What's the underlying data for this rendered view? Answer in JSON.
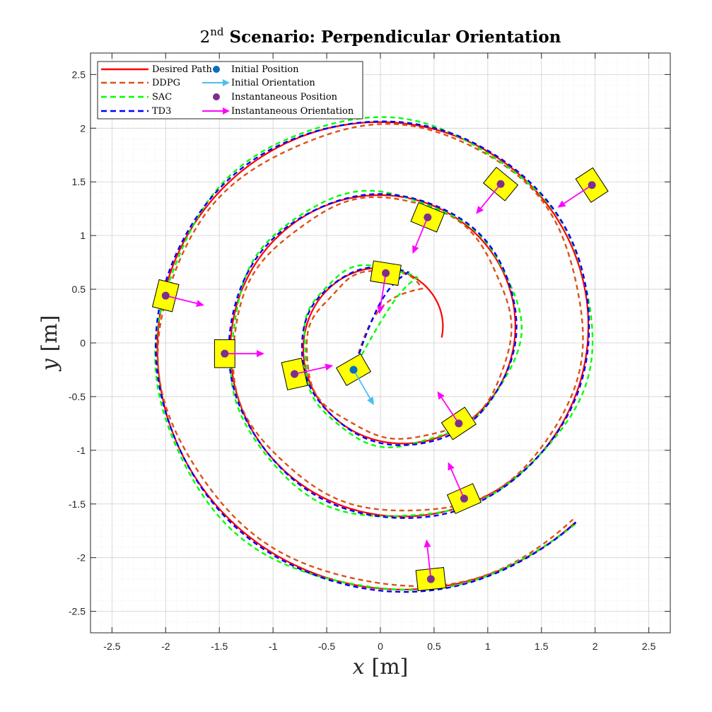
{
  "chart_data": {
    "type": "line",
    "title": {
      "prefix": "2",
      "superscript": "nd",
      "main": " Scenario: Perpendicular Orientation"
    },
    "xlabel": {
      "symbol": "x",
      "unit": "[m]"
    },
    "ylabel": {
      "symbol": "y",
      "unit": "[m]"
    },
    "xlim": [
      -2.7,
      2.7
    ],
    "ylim": [
      -2.7,
      2.7
    ],
    "xticks": [
      -2.5,
      -2,
      -1.5,
      -1,
      -0.5,
      0,
      0.5,
      1,
      1.5,
      2,
      2.5
    ],
    "yticks": [
      -2.5,
      -2,
      -1.5,
      -1,
      -0.5,
      0,
      0.5,
      1,
      1.5,
      2,
      2.5
    ],
    "xtick_labels": [
      "-2.5",
      "-2",
      "-1.5",
      "-1",
      "-0.5",
      "0",
      "0.5",
      "1",
      "1.5",
      "2",
      "2.5"
    ],
    "ytick_labels": [
      "-2.5",
      "-2",
      "-1.5",
      "-1",
      "-0.5",
      "0",
      "0.5",
      "1",
      "1.5",
      "2",
      "2.5"
    ],
    "grid": true,
    "minor_grid": true,
    "legend_position": "top-left",
    "desired_path": {
      "name": "Desired Path",
      "color": "#ff0000",
      "style": "solid",
      "spiral": {
        "center": [
          0.1,
          0.05
        ],
        "r_start": 0.47,
        "r_end": 2.43,
        "theta_start_deg": 0,
        "theta_end_deg": 1035
      }
    },
    "series": [
      {
        "name": "DDPG",
        "color": "#d95319",
        "style": "dashed",
        "radial_offset": -0.035,
        "noise": 0.035,
        "seed": 3
      },
      {
        "name": "SAC",
        "color": "#00ff00",
        "style": "dashed",
        "radial_offset": 0.02,
        "noise": 0.04,
        "seed": 7
      },
      {
        "name": "TD3",
        "color": "#0000ff",
        "style": "dashed",
        "radial_offset": 0.012,
        "noise": 0.012,
        "seed": 11
      }
    ],
    "initial_position": {
      "name": "Initial Position",
      "x": -0.25,
      "y": -0.25,
      "color": "#0072bd"
    },
    "initial_orientation": {
      "name": "Initial Orientation",
      "dx": 0.19,
      "dy": -0.33,
      "color": "#4dbeee"
    },
    "instantaneous_position": {
      "name": "Instantaneous Position",
      "color": "#7e2f8e"
    },
    "instantaneous_orientation": {
      "name": "Instantaneous Orientation",
      "color": "#ff00ff"
    },
    "robots": [
      {
        "x": 0.05,
        "y": 0.65,
        "dx": -0.06,
        "dy": -0.38
      },
      {
        "x": 0.44,
        "y": 1.17,
        "dx": -0.14,
        "dy": -0.34
      },
      {
        "x": 1.12,
        "y": 1.48,
        "dx": -0.23,
        "dy": -0.28
      },
      {
        "x": 1.97,
        "y": 1.47,
        "dx": -0.32,
        "dy": -0.21
      },
      {
        "x": -0.8,
        "y": -0.29,
        "dx": 0.36,
        "dy": 0.08
      },
      {
        "x": -1.45,
        "y": -0.1,
        "dx": 0.37,
        "dy": 0.0
      },
      {
        "x": -2.0,
        "y": 0.44,
        "dx": 0.36,
        "dy": -0.09
      },
      {
        "x": 0.73,
        "y": -0.75,
        "dx": -0.2,
        "dy": 0.3
      },
      {
        "x": 0.78,
        "y": -1.45,
        "dx": -0.15,
        "dy": 0.34
      },
      {
        "x": 0.47,
        "y": -2.2,
        "dx": -0.04,
        "dy": 0.37
      }
    ]
  }
}
